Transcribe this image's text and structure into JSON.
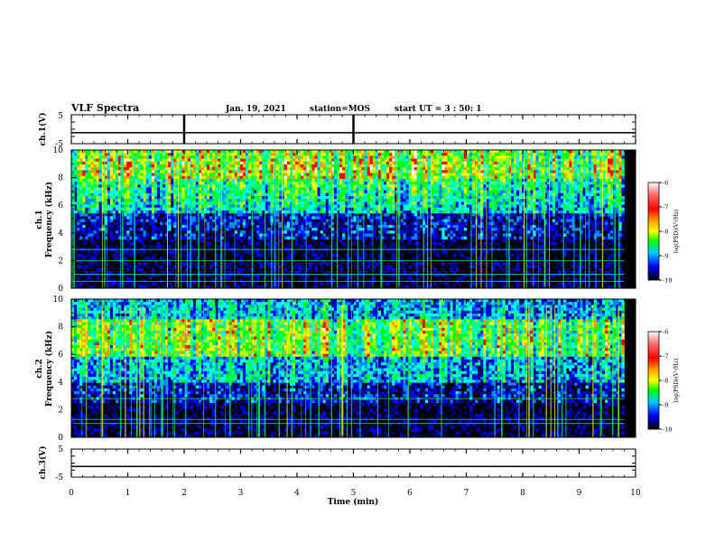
{
  "header": {
    "title": "VLF Spectra",
    "date": "Jan. 19, 2021",
    "station": "station=MOS",
    "start": "start UT = 3 : 50: 1"
  },
  "chart_data": [
    {
      "name": "ch1-voltage",
      "type": "line",
      "ylabel": "ch.1(V)",
      "ylim": [
        -5,
        5
      ],
      "yticks": [
        "5",
        "-5"
      ],
      "x": [
        0,
        10
      ],
      "y": [
        -1.2,
        -1.2
      ],
      "markers_at_min": [
        2.0,
        5.0
      ]
    },
    {
      "name": "ch1-spectrogram",
      "type": "heatmap",
      "ylabel": "ch.1 Frequency (kHz)",
      "ylim": [
        0,
        10
      ],
      "yticks": [
        "0",
        "2",
        "4",
        "6",
        "8",
        "10"
      ],
      "data_until_min": 9.8,
      "colorbar": {
        "label": "log(PSD)(V²/Hz)",
        "range": [
          -10,
          -6
        ],
        "ticks": [
          "-6",
          "-7",
          "-8",
          "-9",
          "-10"
        ]
      },
      "horizontal_lines_khz": [
        0.5,
        1.0,
        2.0,
        2.8
      ]
    },
    {
      "name": "ch2-spectrogram",
      "type": "heatmap",
      "ylabel": "ch.2 Frequency (kHz)",
      "ylim": [
        0,
        10
      ],
      "yticks": [
        "0",
        "2",
        "4",
        "6",
        "8",
        "10"
      ],
      "data_until_min": 9.8,
      "colorbar": {
        "label": "log(PSD)(V²/Hz)",
        "range": [
          -10,
          -6
        ],
        "ticks": [
          "-6",
          "-7",
          "-8",
          "-9",
          "-10"
        ]
      },
      "horizontal_lines_khz": [
        1.0,
        1.3,
        2.8
      ]
    },
    {
      "name": "ch3-voltage",
      "type": "line",
      "ylabel": "ch.3(V)",
      "ylim": [
        -5,
        5
      ],
      "yticks": [
        "5",
        "-5"
      ],
      "x": [
        0,
        10
      ],
      "y": [
        -1.2,
        -1.2
      ]
    }
  ],
  "xaxis": {
    "label": "Time (min)",
    "range": [
      0,
      10
    ],
    "ticks": [
      "0",
      "1",
      "2",
      "3",
      "4",
      "5",
      "6",
      "7",
      "8",
      "9",
      "10"
    ]
  },
  "colors": {
    "panel_bg": "#000000",
    "line": "#000000",
    "grid_line": "#00ff00"
  }
}
